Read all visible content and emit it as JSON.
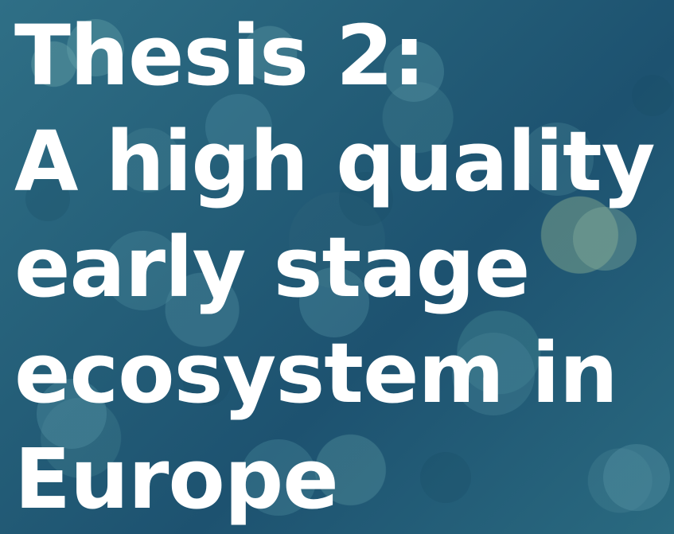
{
  "slide": {
    "background": "aerial-forest-canopy",
    "tint_color": "#1e4e68",
    "text_color": "#ffffff",
    "title_lines": [
      "Thesis 2:",
      "A high quality",
      "early stage",
      "ecosystem in",
      "Europe"
    ]
  }
}
